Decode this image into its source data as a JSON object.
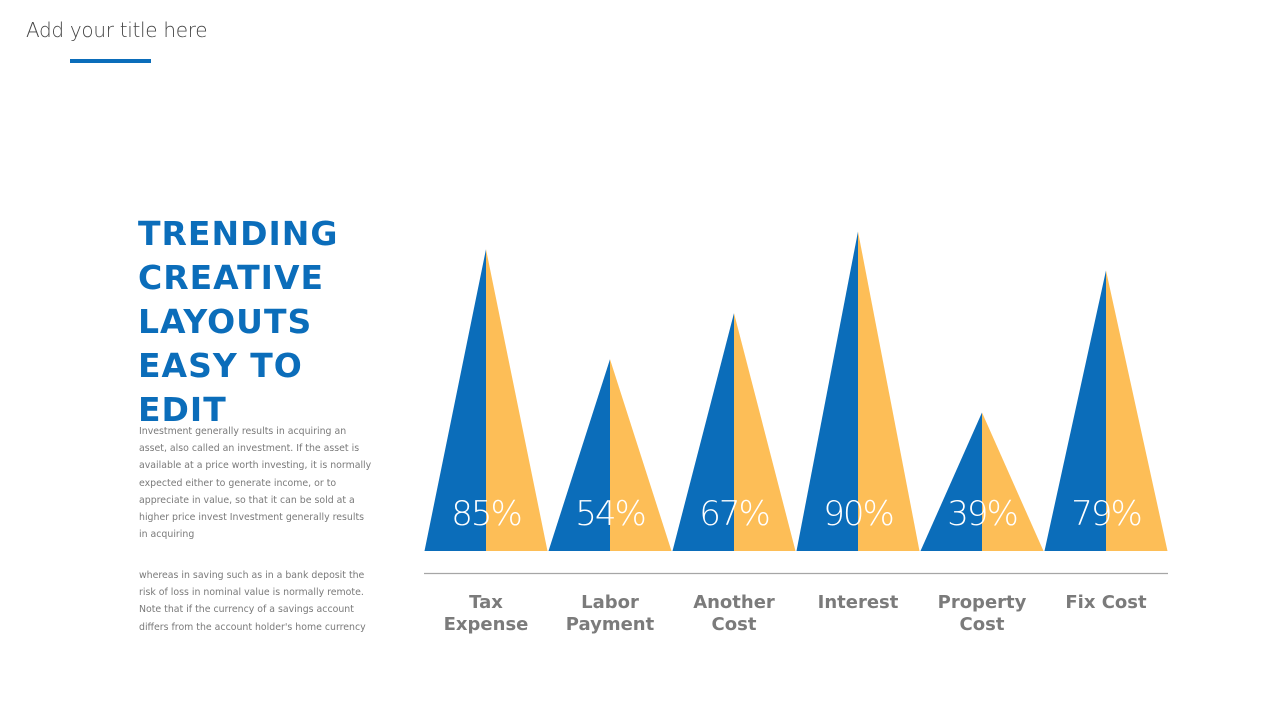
{
  "slide": {
    "title": "Add your title here",
    "heading_lines": [
      "TRENDING",
      "CREATIVE",
      "LAYOUTS",
      "EASY TO",
      "EDIT"
    ],
    "paragraph_1": "Investment generally results in acquiring an asset, also called an investment. If the asset is available at a price worth investing, it is normally expected either to generate income, or to appreciate in value, so that it can be sold at a higher price invest Investment generally results in acquiring",
    "paragraph_2": "whereas in saving such as in a bank deposit the risk of loss in nominal value is normally remote. Note that if the currency of a savings account differs from the account holder's home currency"
  },
  "colors": {
    "accent_blue": "#0B6DBA",
    "accent_yellow": "#FDBE57",
    "label_gray": "#7b7b7b",
    "divider_gray": "#a6a6a6"
  },
  "chart_data": {
    "type": "bar",
    "style": "triangle-peaks",
    "title": "",
    "xlabel": "",
    "ylabel": "",
    "ylim": [
      0,
      100
    ],
    "unit": "%",
    "grid": false,
    "legend": "none",
    "categories": [
      [
        "Tax",
        "Expense"
      ],
      [
        "Labor",
        "Payment"
      ],
      [
        "Another",
        "Cost"
      ],
      [
        "Interest"
      ],
      [
        "Property",
        "Cost"
      ],
      [
        "Fix Cost"
      ]
    ],
    "values": [
      85,
      54,
      67,
      90,
      39,
      79
    ],
    "value_labels": [
      "85%",
      "54%",
      "67%",
      "90%",
      "39%",
      "79%"
    ]
  }
}
